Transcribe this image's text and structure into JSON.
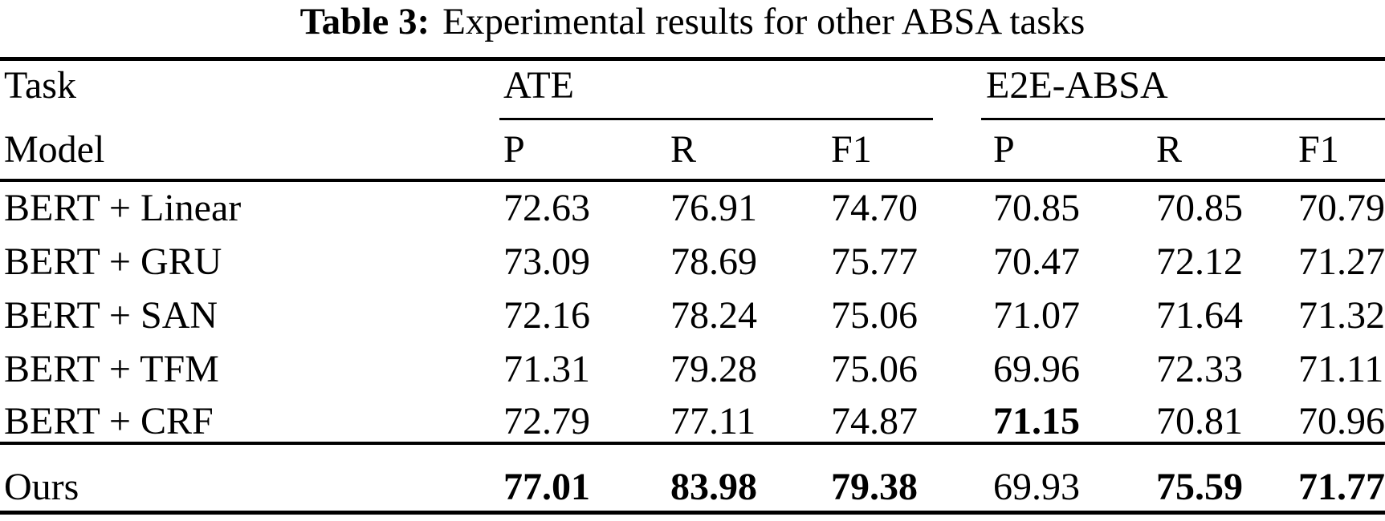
{
  "caption": {
    "label": "Table 3:",
    "text": "Experimental results for other ABSA tasks"
  },
  "table": {
    "header": {
      "task": "Task",
      "model": "Model",
      "group_ate": "ATE",
      "group_e2e": "E2E-ABSA",
      "p": "P",
      "r": "R",
      "f1": "F1"
    },
    "rows": [
      {
        "model": "BERT + Linear",
        "ate": {
          "p": "72.63",
          "r": "76.91",
          "f1": "74.70"
        },
        "e2e": {
          "p": "70.85",
          "r": "70.85",
          "f1": "70.79"
        }
      },
      {
        "model": "BERT + GRU",
        "ate": {
          "p": "73.09",
          "r": "78.69",
          "f1": "75.77"
        },
        "e2e": {
          "p": "70.47",
          "r": "72.12",
          "f1": "71.27"
        }
      },
      {
        "model": "BERT + SAN",
        "ate": {
          "p": "72.16",
          "r": "78.24",
          "f1": "75.06"
        },
        "e2e": {
          "p": "71.07",
          "r": "71.64",
          "f1": "71.32"
        }
      },
      {
        "model": "BERT + TFM",
        "ate": {
          "p": "71.31",
          "r": "79.28",
          "f1": "75.06"
        },
        "e2e": {
          "p": "69.96",
          "r": "72.33",
          "f1": "71.11"
        }
      },
      {
        "model": "BERT + CRF",
        "ate": {
          "p": "72.79",
          "r": "77.11",
          "f1": "74.87"
        },
        "e2e": {
          "p": "71.15",
          "r": "70.81",
          "f1": "70.96"
        }
      }
    ],
    "ours": {
      "model": "Ours",
      "ate": {
        "p": "77.01",
        "r": "83.98",
        "f1": "79.38"
      },
      "e2e": {
        "p": "69.93",
        "r": "75.59",
        "f1": "71.77"
      }
    }
  }
}
